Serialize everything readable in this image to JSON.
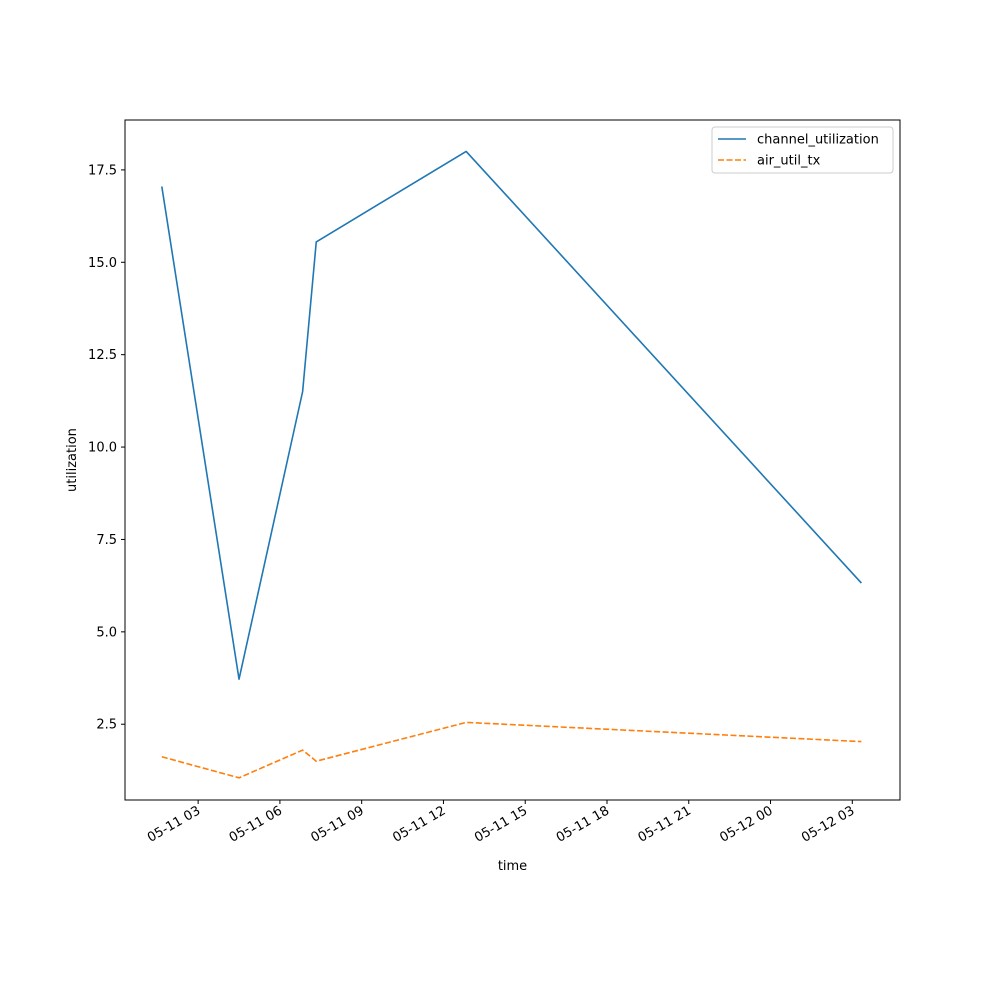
{
  "chart_data": {
    "type": "line",
    "title": "",
    "xlabel": "time",
    "ylabel": "utilization",
    "x": [
      "2023-05-11 01:40",
      "2023-05-11 04:30",
      "2023-05-11 06:50",
      "2023-05-11 07:20",
      "2023-05-11 12:50",
      "2023-05-12 03:20"
    ],
    "series": [
      {
        "name": "channel_utilization",
        "color": "#1f77b4",
        "style": "solid",
        "values": [
          17.05,
          3.72,
          11.5,
          15.55,
          18.0,
          6.32
        ]
      },
      {
        "name": "air_util_tx",
        "color": "#ff7f0e",
        "style": "dashed",
        "values": [
          1.62,
          1.05,
          1.8,
          1.5,
          2.55,
          2.03
        ]
      }
    ],
    "xlim": [
      "2023-05-11 00:19",
      "2023-05-12 04:45"
    ],
    "ylim": [
      0.45,
      18.85
    ],
    "xticks": [
      {
        "at": "2023-05-11 03:00",
        "label": "05-11 03"
      },
      {
        "at": "2023-05-11 06:00",
        "label": "05-11 06"
      },
      {
        "at": "2023-05-11 09:00",
        "label": "05-11 09"
      },
      {
        "at": "2023-05-11 12:00",
        "label": "05-11 12"
      },
      {
        "at": "2023-05-11 15:00",
        "label": "05-11 15"
      },
      {
        "at": "2023-05-11 18:00",
        "label": "05-11 18"
      },
      {
        "at": "2023-05-11 21:00",
        "label": "05-11 21"
      },
      {
        "at": "2023-05-12 00:00",
        "label": "05-12 00"
      },
      {
        "at": "2023-05-12 03:00",
        "label": "05-12 03"
      }
    ],
    "yticks": [
      {
        "value": 2.5,
        "label": "2.5"
      },
      {
        "value": 5.0,
        "label": "5.0"
      },
      {
        "value": 7.5,
        "label": "7.5"
      },
      {
        "value": 10.0,
        "label": "10.0"
      },
      {
        "value": 12.5,
        "label": "12.5"
      },
      {
        "value": 15.0,
        "label": "15.0"
      },
      {
        "value": 17.5,
        "label": "17.5"
      }
    ],
    "grid": false,
    "legend_position": "top-right"
  }
}
